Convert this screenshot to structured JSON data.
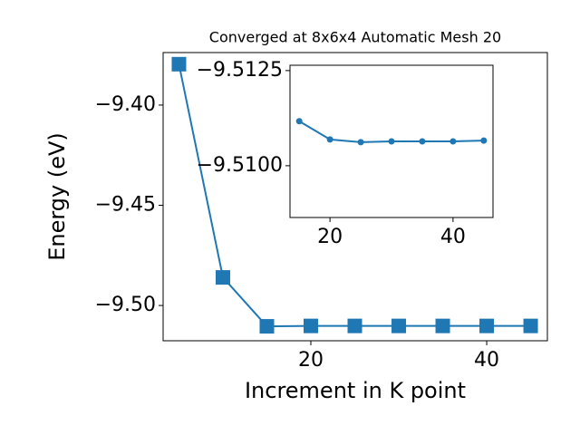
{
  "chart_data": [
    {
      "type": "line",
      "title": "Converged at 8x6x4 Automatic Mesh 20",
      "x_label": "Increment in K point",
      "y_label": "Energy (eV)",
      "x": [
        5,
        10,
        15,
        20,
        25,
        30,
        35,
        40,
        45
      ],
      "values": [
        -9.3796,
        -9.486,
        -9.5104,
        -9.5102,
        -9.5102,
        -9.5102,
        -9.5102,
        -9.5102,
        -9.5102
      ],
      "color": "#1f77b4",
      "marker": "square",
      "xlim": [
        3.2,
        46.9
      ],
      "xticks": [
        20,
        40
      ],
      "ylim": [
        -9.5176,
        -9.3738
      ],
      "yticks": [
        {
          "value": -9.5,
          "label": "−9.50"
        },
        {
          "value": -9.45,
          "label": "−9.45"
        },
        {
          "value": -9.4,
          "label": "−9.40"
        }
      ]
    },
    {
      "type": "line",
      "x": [
        15,
        20,
        25,
        30,
        35,
        40,
        45
      ],
      "values": [
        -9.51117,
        -9.51069,
        -9.51062,
        -9.51064,
        -9.51064,
        -9.51064,
        -9.51066
      ],
      "color": "#1f77b4",
      "marker": "circle",
      "xlim": [
        13.5,
        46.5
      ],
      "xticks": [
        20,
        40
      ],
      "ylim": [
        -9.50864,
        -9.51264
      ],
      "yticks": [
        {
          "value": -9.5125,
          "label": "−9.5125"
        },
        {
          "value": -9.51,
          "label": "−9.5100"
        }
      ]
    }
  ]
}
